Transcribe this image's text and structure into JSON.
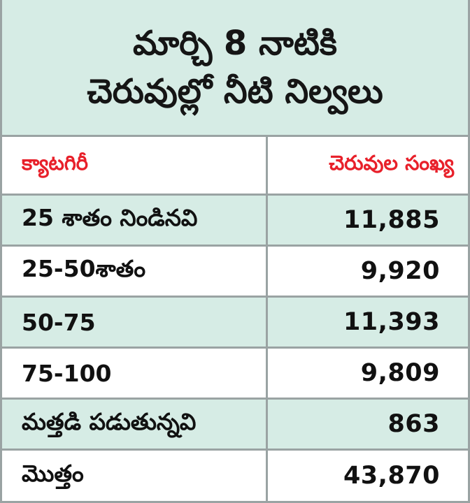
{
  "title": {
    "line1": "మార్చి 8 నాటికి",
    "line2": "చెరువుల్లో నీటి నిల్వలు"
  },
  "colors": {
    "header_text": "#e8202a",
    "row_shade": "#d6ece5",
    "border": "#9aa3a3"
  },
  "table": {
    "columns": [
      "క్యాటగిరీ",
      "చెరువుల సంఖ్య"
    ],
    "rows": [
      {
        "category": "25 శాతం నిండినవి",
        "count": "11,885"
      },
      {
        "category": "25-50శాతం",
        "count": "9,920"
      },
      {
        "category": "50-75",
        "count": "11,393"
      },
      {
        "category": "75-100",
        "count": "9,809"
      },
      {
        "category": "మత్తడి పడుతున్నవి",
        "count": "863"
      },
      {
        "category": "మొత్తం",
        "count": "43,870"
      }
    ]
  }
}
